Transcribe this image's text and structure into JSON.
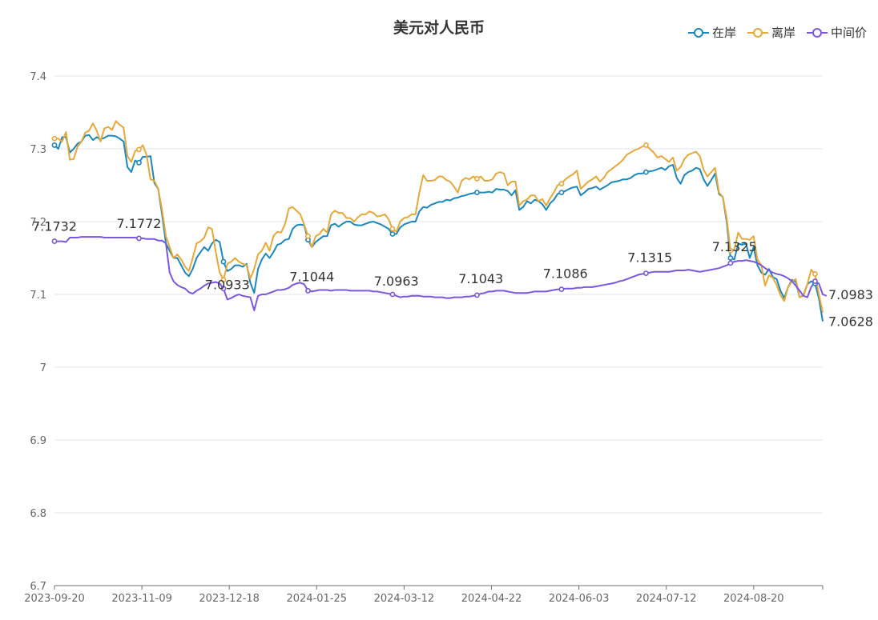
{
  "chart_data": {
    "type": "line",
    "title": "美元对人民币",
    "ylim": [
      6.7,
      7.4
    ],
    "yticks": [
      "7.4",
      "7.3",
      "7.2",
      "7.1",
      "7",
      "6.9",
      "6.8",
      "6.7"
    ],
    "xticks": [
      "2023-09-20",
      "2023-11-09",
      "2023-12-18",
      "2024-01-25",
      "2024-03-12",
      "2024-04-22",
      "2024-06-03",
      "2024-07-12",
      "2024-08-20"
    ],
    "grid": true,
    "legend_position": "top-right",
    "series": [
      {
        "name": "在岸",
        "color": "#1a87bf",
        "values": [
          7.305,
          7.3,
          7.316,
          7.316,
          7.295,
          7.3,
          7.307,
          7.31,
          7.318,
          7.319,
          7.312,
          7.316,
          7.313,
          7.315,
          7.318,
          7.318,
          7.317,
          7.314,
          7.31,
          7.275,
          7.268,
          7.284,
          7.281,
          7.289,
          7.289,
          7.29,
          7.253,
          7.245,
          7.21,
          7.17,
          7.16,
          7.15,
          7.15,
          7.14,
          7.13,
          7.125,
          7.135,
          7.15,
          7.158,
          7.165,
          7.16,
          7.17,
          7.175,
          7.172,
          7.145,
          7.132,
          7.135,
          7.14,
          7.14,
          7.138,
          7.142,
          7.116,
          7.102,
          7.135,
          7.148,
          7.156,
          7.15,
          7.158,
          7.168,
          7.17,
          7.175,
          7.176,
          7.19,
          7.195,
          7.196,
          7.195,
          7.175,
          7.165,
          7.172,
          7.176,
          7.18,
          7.18,
          7.195,
          7.197,
          7.193,
          7.197,
          7.2,
          7.2,
          7.196,
          7.195,
          7.195,
          7.197,
          7.199,
          7.2,
          7.198,
          7.196,
          7.193,
          7.19,
          7.183,
          7.183,
          7.192,
          7.196,
          7.198,
          7.2,
          7.2,
          7.214,
          7.22,
          7.219,
          7.223,
          7.225,
          7.227,
          7.227,
          7.23,
          7.229,
          7.232,
          7.233,
          7.235,
          7.236,
          7.238,
          7.239,
          7.24,
          7.24,
          7.24,
          7.241,
          7.24,
          7.245,
          7.244,
          7.244,
          7.242,
          7.236,
          7.243,
          7.216,
          7.22,
          7.228,
          7.225,
          7.23,
          7.228,
          7.224,
          7.216,
          7.225,
          7.23,
          7.238,
          7.24,
          7.242,
          7.245,
          7.247,
          7.248,
          7.236,
          7.24,
          7.245,
          7.246,
          7.248,
          7.244,
          7.247,
          7.25,
          7.254,
          7.255,
          7.256,
          7.258,
          7.258,
          7.26,
          7.264,
          7.266,
          7.266,
          7.268,
          7.269,
          7.27,
          7.272,
          7.274,
          7.271,
          7.276,
          7.278,
          7.26,
          7.252,
          7.264,
          7.268,
          7.27,
          7.274,
          7.272,
          7.258,
          7.249,
          7.257,
          7.266,
          7.238,
          7.234,
          7.2,
          7.15,
          7.148,
          7.17,
          7.168,
          7.17,
          7.15,
          7.165,
          7.14,
          7.13,
          7.127,
          7.135,
          7.124,
          7.121,
          7.105,
          7.095,
          7.11,
          7.12,
          7.117,
          7.096,
          7.099,
          7.114,
          7.118,
          7.115,
          7.095,
          7.063
        ]
      },
      {
        "name": "离岸",
        "color": "#e8a838",
        "values": [
          7.314,
          7.314,
          7.31,
          7.323,
          7.285,
          7.286,
          7.303,
          7.31,
          7.322,
          7.325,
          7.335,
          7.325,
          7.31,
          7.328,
          7.33,
          7.326,
          7.338,
          7.333,
          7.329,
          7.29,
          7.282,
          7.297,
          7.299,
          7.305,
          7.291,
          7.258,
          7.256,
          7.245,
          7.216,
          7.18,
          7.165,
          7.15,
          7.155,
          7.148,
          7.138,
          7.132,
          7.15,
          7.17,
          7.173,
          7.178,
          7.192,
          7.19,
          7.158,
          7.13,
          7.12,
          7.142,
          7.145,
          7.15,
          7.145,
          7.142,
          7.14,
          7.122,
          7.135,
          7.155,
          7.16,
          7.171,
          7.16,
          7.18,
          7.186,
          7.185,
          7.196,
          7.218,
          7.22,
          7.215,
          7.21,
          7.196,
          7.18,
          7.165,
          7.18,
          7.183,
          7.19,
          7.185,
          7.21,
          7.215,
          7.212,
          7.212,
          7.205,
          7.205,
          7.2,
          7.206,
          7.21,
          7.21,
          7.214,
          7.212,
          7.207,
          7.208,
          7.21,
          7.203,
          7.19,
          7.186,
          7.2,
          7.205,
          7.206,
          7.21,
          7.21,
          7.24,
          7.264,
          7.256,
          7.256,
          7.257,
          7.262,
          7.262,
          7.257,
          7.255,
          7.248,
          7.24,
          7.256,
          7.26,
          7.258,
          7.262,
          7.259,
          7.262,
          7.256,
          7.256,
          7.258,
          7.266,
          7.268,
          7.266,
          7.25,
          7.255,
          7.255,
          7.222,
          7.228,
          7.23,
          7.236,
          7.236,
          7.228,
          7.231,
          7.222,
          7.232,
          7.24,
          7.25,
          7.252,
          7.258,
          7.262,
          7.265,
          7.27,
          7.245,
          7.25,
          7.255,
          7.258,
          7.262,
          7.255,
          7.26,
          7.268,
          7.272,
          7.276,
          7.28,
          7.285,
          7.292,
          7.295,
          7.298,
          7.3,
          7.303,
          7.305,
          7.3,
          7.295,
          7.288,
          7.29,
          7.286,
          7.282,
          7.288,
          7.27,
          7.275,
          7.286,
          7.292,
          7.294,
          7.296,
          7.29,
          7.271,
          7.262,
          7.268,
          7.274,
          7.24,
          7.234,
          7.205,
          7.16,
          7.162,
          7.185,
          7.176,
          7.176,
          7.175,
          7.18,
          7.148,
          7.14,
          7.112,
          7.126,
          7.123,
          7.113,
          7.099,
          7.091,
          7.11,
          7.118,
          7.121,
          7.096,
          7.098,
          7.114,
          7.134,
          7.128,
          7.1,
          7.075
        ]
      },
      {
        "name": "中间价",
        "color": "#7b57e0",
        "values": [
          7.173,
          7.173,
          7.173,
          7.172,
          7.178,
          7.178,
          7.178,
          7.179,
          7.179,
          7.179,
          7.179,
          7.179,
          7.179,
          7.178,
          7.178,
          7.178,
          7.178,
          7.178,
          7.178,
          7.178,
          7.178,
          7.178,
          7.177,
          7.177,
          7.176,
          7.176,
          7.176,
          7.174,
          7.174,
          7.17,
          7.13,
          7.118,
          7.113,
          7.11,
          7.108,
          7.103,
          7.101,
          7.105,
          7.108,
          7.112,
          7.115,
          7.116,
          7.117,
          7.115,
          7.108,
          7.093,
          7.095,
          7.098,
          7.1,
          7.098,
          7.097,
          7.096,
          7.078,
          7.098,
          7.1,
          7.1,
          7.102,
          7.104,
          7.106,
          7.106,
          7.107,
          7.109,
          7.113,
          7.115,
          7.116,
          7.114,
          7.105,
          7.104,
          7.105,
          7.106,
          7.106,
          7.106,
          7.105,
          7.106,
          7.106,
          7.106,
          7.106,
          7.105,
          7.105,
          7.105,
          7.105,
          7.105,
          7.105,
          7.104,
          7.104,
          7.103,
          7.102,
          7.101,
          7.1,
          7.098,
          7.096,
          7.097,
          7.097,
          7.098,
          7.098,
          7.098,
          7.097,
          7.097,
          7.097,
          7.096,
          7.096,
          7.096,
          7.095,
          7.095,
          7.096,
          7.096,
          7.096,
          7.097,
          7.097,
          7.098,
          7.099,
          7.101,
          7.102,
          7.104,
          7.104,
          7.105,
          7.105,
          7.105,
          7.104,
          7.103,
          7.102,
          7.102,
          7.102,
          7.102,
          7.103,
          7.104,
          7.104,
          7.104,
          7.104,
          7.105,
          7.106,
          7.107,
          7.107,
          7.108,
          7.108,
          7.108,
          7.109,
          7.109,
          7.11,
          7.11,
          7.11,
          7.111,
          7.112,
          7.113,
          7.114,
          7.115,
          7.116,
          7.118,
          7.119,
          7.121,
          7.123,
          7.125,
          7.127,
          7.128,
          7.129,
          7.13,
          7.131,
          7.131,
          7.131,
          7.131,
          7.131,
          7.132,
          7.133,
          7.133,
          7.133,
          7.134,
          7.133,
          7.132,
          7.131,
          7.132,
          7.133,
          7.134,
          7.135,
          7.136,
          7.138,
          7.14,
          7.143,
          7.145,
          7.146,
          7.146,
          7.147,
          7.146,
          7.145,
          7.143,
          7.14,
          7.136,
          7.133,
          7.13,
          7.128,
          7.127,
          7.125,
          7.122,
          7.118,
          7.112,
          7.105,
          7.098,
          7.096,
          7.11,
          7.118,
          7.115,
          7.1,
          7.098
        ]
      }
    ],
    "annotations": [
      {
        "label": "7.1732",
        "series": 2,
        "index": 0
      },
      {
        "label": "7.1772",
        "series": 2,
        "index": 22
      },
      {
        "label": "7.0933",
        "series": 2,
        "index": 45
      },
      {
        "label": "7.1044",
        "series": 2,
        "index": 67
      },
      {
        "label": "7.0963",
        "series": 2,
        "index": 89
      },
      {
        "label": "7.1043",
        "series": 2,
        "index": 111
      },
      {
        "label": "7.1086",
        "series": 2,
        "index": 133
      },
      {
        "label": "7.1315",
        "series": 2,
        "index": 155
      },
      {
        "label": "7.1325",
        "series": 2,
        "index": 177
      }
    ],
    "end_labels": [
      {
        "label": "7.0983",
        "series": 2
      },
      {
        "label": "7.0628",
        "series": 0
      }
    ]
  }
}
